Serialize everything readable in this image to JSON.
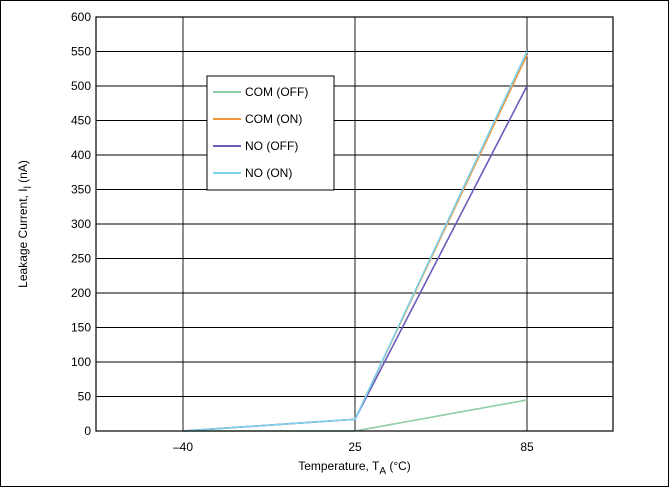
{
  "chart_data": {
    "type": "line",
    "title": "",
    "xlabel_main": "Temperature, T",
    "xlabel_sub": "A",
    "xlabel_unit": " (°C)",
    "ylabel_main": "Leakage Current, I",
    "ylabel_sub": "l",
    "ylabel_unit": " (nA)",
    "categories": [
      "–40",
      "25",
      "85"
    ],
    "y_ticks": [
      "0",
      "50",
      "100",
      "150",
      "200",
      "250",
      "300",
      "350",
      "400",
      "450",
      "500",
      "550",
      "600"
    ],
    "ylim": [
      0,
      600
    ],
    "grid": true,
    "legend_position": "upper-left-inside",
    "series": [
      {
        "name": "COM (OFF)",
        "color": "#8fcca8",
        "values": [
          0,
          0,
          45
        ]
      },
      {
        "name": "COM (ON)",
        "color": "#f0963c",
        "values": [
          0,
          17,
          545
        ]
      },
      {
        "name": "NO (OFF)",
        "color": "#6a5cbc",
        "values": [
          0,
          17,
          500
        ]
      },
      {
        "name": "NO (ON)",
        "color": "#7ad2ee",
        "values": [
          0,
          17,
          550
        ]
      }
    ]
  }
}
